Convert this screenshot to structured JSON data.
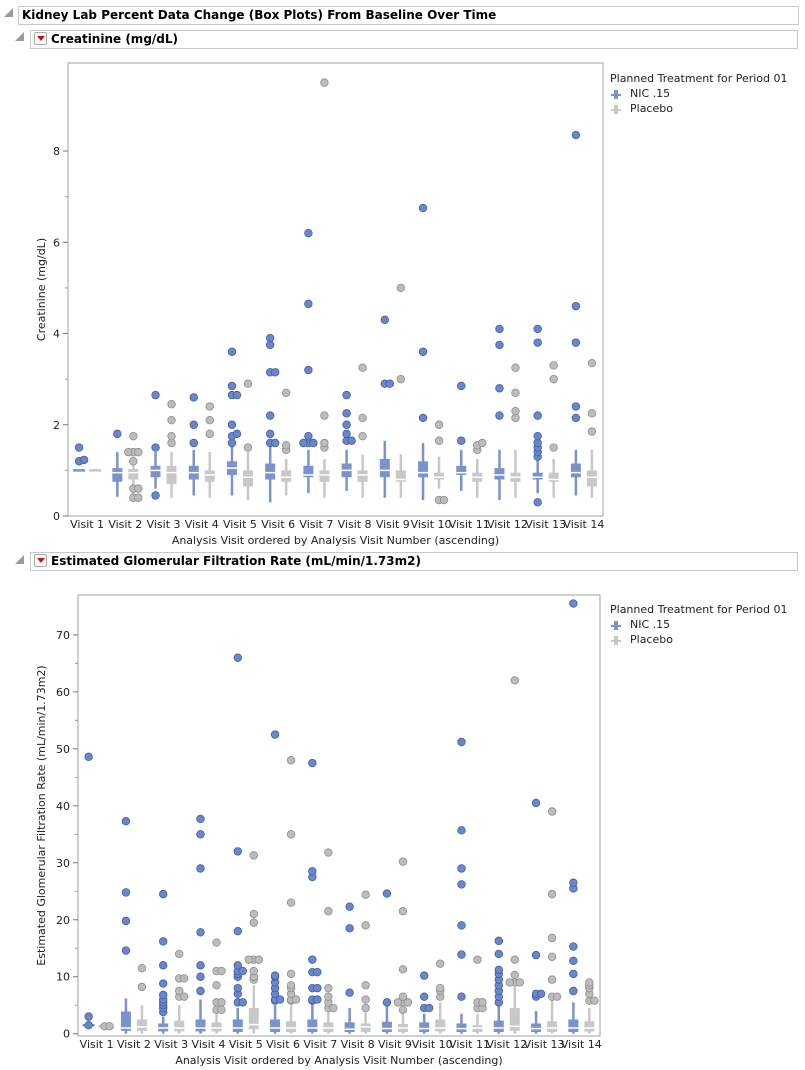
{
  "report": {
    "title": "Kidney Lab Percent Data Change (Box Plots) From Baseline Over Time"
  },
  "legend": {
    "title": "Planned Treatment for Period 01",
    "items": [
      {
        "label": "NIC .15",
        "color": "#7b93cc"
      },
      {
        "label": "Placebo",
        "color": "#c8c8c8"
      }
    ]
  },
  "colors": {
    "nic_box": "#7b93cc",
    "nic_point": "#6b87c9",
    "placebo_box": "#c8c8c8",
    "placebo_point": "#bcbcbc"
  },
  "chart_data": [
    {
      "type": "box",
      "title": "Creatinine (mg/dL)",
      "ylabel": "Creatinine (mg/dL)",
      "xlabel": "Analysis Visit ordered by Analysis Visit Number (ascending)",
      "ylim": [
        0,
        9.93
      ],
      "yticks": [
        0,
        2,
        4,
        6,
        8
      ],
      "grid": false,
      "legend": "right",
      "categories": [
        "Visit 1",
        "Visit 2",
        "Visit 3",
        "Visit 4",
        "Visit 5",
        "Visit 6",
        "Visit 7",
        "Visit 8",
        "Visit 9",
        "Visit 10",
        "Visit 11",
        "Visit 12",
        "Visit 13",
        "Visit 14"
      ],
      "series": [
        {
          "name": "NIC .15",
          "boxes": [
            {
              "min": 1.0,
              "q1": 1.0,
              "median": 1.0,
              "q3": 1.0,
              "max": 1.0,
              "outliers": [
                1.2,
                1.23,
                1.5
              ]
            },
            {
              "min": 0.42,
              "q1": 0.75,
              "median": 0.95,
              "q3": 1.05,
              "max": 1.4,
              "outliers": [
                1.8
              ]
            },
            {
              "min": 0.6,
              "q1": 0.85,
              "median": 1.0,
              "q3": 1.1,
              "max": 1.4,
              "outliers": [
                0.45,
                1.5,
                2.65
              ]
            },
            {
              "min": 0.45,
              "q1": 0.8,
              "median": 0.95,
              "q3": 1.1,
              "max": 1.45,
              "outliers": [
                1.6,
                2.0,
                2.6
              ]
            },
            {
              "min": 0.45,
              "q1": 0.9,
              "median": 1.05,
              "q3": 1.2,
              "max": 1.65,
              "outliers": [
                1.6,
                1.75,
                1.8,
                2.0,
                2.65,
                2.65,
                2.85,
                3.6
              ]
            },
            {
              "min": 0.3,
              "q1": 0.8,
              "median": 0.95,
              "q3": 1.15,
              "max": 1.6,
              "outliers": [
                1.6,
                1.6,
                1.8,
                2.2,
                3.15,
                3.15,
                3.75,
                3.9
              ]
            },
            {
              "min": 0.5,
              "q1": 0.85,
              "median": 0.9,
              "q3": 1.1,
              "max": 1.45,
              "outliers": [
                1.6,
                1.6,
                1.6,
                1.75,
                3.2,
                4.65,
                6.2
              ]
            },
            {
              "min": 0.55,
              "q1": 0.85,
              "median": 1.0,
              "q3": 1.15,
              "max": 1.45,
              "outliers": [
                1.65,
                1.65,
                1.8,
                2.0,
                2.25,
                2.65
              ]
            },
            {
              "min": 0.4,
              "q1": 0.85,
              "median": 1.0,
              "q3": 1.25,
              "max": 1.65,
              "outliers": [
                2.9,
                2.9,
                4.3
              ]
            },
            {
              "min": 0.35,
              "q1": 0.85,
              "median": 0.95,
              "q3": 1.2,
              "max": 1.6,
              "outliers": [
                2.15,
                3.6,
                6.75
              ]
            },
            {
              "min": 0.55,
              "q1": 0.9,
              "median": 0.95,
              "q3": 1.1,
              "max": 1.45,
              "outliers": [
                1.65,
                2.85
              ]
            },
            {
              "min": 0.35,
              "q1": 0.8,
              "median": 0.9,
              "q3": 1.05,
              "max": 1.45,
              "outliers": [
                2.2,
                2.8,
                3.75,
                4.1
              ]
            },
            {
              "min": 0.5,
              "q1": 0.8,
              "median": 0.85,
              "q3": 0.95,
              "max": 1.25,
              "outliers": [
                0.3,
                1.3,
                1.4,
                1.5,
                1.6,
                1.75,
                2.2,
                3.8,
                4.1
              ]
            },
            {
              "min": 0.45,
              "q1": 0.85,
              "median": 0.95,
              "q3": 1.15,
              "max": 1.45,
              "outliers": [
                2.15,
                2.4,
                3.8,
                4.6,
                8.35
              ]
            }
          ]
        },
        {
          "name": "Placebo",
          "boxes": [
            {
              "min": 1.0,
              "q1": 1.0,
              "median": 1.0,
              "q3": 1.0,
              "max": 1.0,
              "outliers": []
            },
            {
              "min": 0.45,
              "q1": 0.8,
              "median": 0.95,
              "q3": 1.03,
              "max": 1.3,
              "outliers": [
                0.4,
                0.4,
                0.6,
                0.6,
                1.2,
                1.4,
                1.4,
                1.4,
                1.75
              ]
            },
            {
              "min": 0.4,
              "q1": 0.7,
              "median": 0.95,
              "q3": 1.1,
              "max": 1.4,
              "outliers": [
                1.6,
                1.75,
                2.1,
                2.45
              ]
            },
            {
              "min": 0.4,
              "q1": 0.75,
              "median": 0.9,
              "q3": 1.0,
              "max": 1.4,
              "outliers": [
                1.8,
                2.1,
                2.4
              ]
            },
            {
              "min": 0.35,
              "q1": 0.65,
              "median": 0.85,
              "q3": 1.0,
              "max": 1.4,
              "outliers": [
                1.5,
                2.9
              ]
            },
            {
              "min": 0.45,
              "q1": 0.75,
              "median": 0.85,
              "q3": 1.0,
              "max": 1.25,
              "outliers": [
                1.45,
                1.55,
                2.7
              ]
            },
            {
              "min": 0.4,
              "q1": 0.75,
              "median": 0.9,
              "q3": 1.0,
              "max": 1.25,
              "outliers": [
                1.5,
                1.6,
                2.2,
                9.5
              ]
            },
            {
              "min": 0.4,
              "q1": 0.75,
              "median": 0.9,
              "q3": 1.0,
              "max": 1.35,
              "outliers": [
                1.75,
                2.15,
                3.25
              ]
            },
            {
              "min": 0.4,
              "q1": 0.75,
              "median": 0.8,
              "q3": 1.0,
              "max": 1.35,
              "outliers": [
                3.0,
                5.0
              ]
            },
            {
              "min": 0.6,
              "q1": 0.8,
              "median": 0.85,
              "q3": 0.95,
              "max": 1.3,
              "outliers": [
                0.35,
                0.35,
                1.65,
                2.0
              ]
            },
            {
              "min": 0.4,
              "q1": 0.75,
              "median": 0.85,
              "q3": 0.95,
              "max": 1.25,
              "outliers": [
                1.45,
                1.55,
                1.6
              ]
            },
            {
              "min": 0.4,
              "q1": 0.75,
              "median": 0.85,
              "q3": 0.95,
              "max": 1.45,
              "outliers": [
                2.15,
                2.3,
                2.7,
                3.25
              ]
            },
            {
              "min": 0.4,
              "q1": 0.75,
              "median": 0.8,
              "q3": 0.95,
              "max": 1.25,
              "outliers": [
                1.5,
                3.0,
                3.3
              ]
            },
            {
              "min": 0.4,
              "q1": 0.65,
              "median": 0.85,
              "q3": 1.0,
              "max": 1.45,
              "outliers": [
                1.85,
                2.25,
                3.35
              ]
            }
          ]
        }
      ]
    },
    {
      "type": "box",
      "title": "Estimated Glomerular Filtration Rate (mL/min/1.73m2)",
      "ylabel": "Estimated Glomerular Filtration Rate (mL/min/1.73m2)",
      "xlabel": "Analysis Visit ordered by Analysis Visit Number (ascending)",
      "ylim": [
        -0.4,
        77
      ],
      "yticks": [
        0,
        10,
        20,
        30,
        40,
        50,
        60,
        70
      ],
      "grid": false,
      "legend": "right",
      "categories": [
        "Visit 1",
        "Visit 2",
        "Visit 3",
        "Visit 4",
        "Visit 5",
        "Visit 6",
        "Visit 7",
        "Visit 8",
        "Visit 9",
        "Visit 10",
        "Visit 11",
        "Visit 12",
        "Visit 13",
        "Visit 14"
      ],
      "series": [
        {
          "name": "NIC .15",
          "boxes": [
            {
              "min": 1.5,
              "q1": 1.5,
              "median": 1.5,
              "q3": 1.5,
              "max": 1.5,
              "outliers": [
                1.5,
                3.0,
                48.6
              ]
            },
            {
              "min": 0,
              "q1": 0.5,
              "median": 1.0,
              "q3": 3.9,
              "max": 6.2,
              "outliers": [
                14.6,
                19.8,
                24.8,
                37.3
              ]
            },
            {
              "min": 0,
              "q1": 0.4,
              "median": 1.0,
              "q3": 1.8,
              "max": 3.0,
              "outliers": [
                3.8,
                4.5,
                5.0,
                5.5,
                6.0,
                6.8,
                8.8,
                12,
                16.2,
                24.5
              ]
            },
            {
              "min": 0,
              "q1": 0.4,
              "median": 1.0,
              "q3": 2.5,
              "max": 6.0,
              "outliers": [
                7.5,
                10,
                12,
                17.8,
                29,
                35,
                37.7
              ]
            },
            {
              "min": 0,
              "q1": 0.3,
              "median": 1.0,
              "q3": 2.5,
              "max": 4.5,
              "outliers": [
                5.5,
                5.5,
                7,
                8,
                10,
                10.5,
                11,
                11,
                12,
                18,
                32,
                66
              ]
            },
            {
              "min": 0,
              "q1": 0.3,
              "median": 1.0,
              "q3": 2.5,
              "max": 5.0,
              "outliers": [
                5.8,
                6,
                6,
                7,
                8,
                9,
                10,
                10.2,
                52.5
              ]
            },
            {
              "min": 0,
              "q1": 0.3,
              "median": 1.0,
              "q3": 2.5,
              "max": 5.5,
              "outliers": [
                5.8,
                6,
                6,
                8,
                8,
                10.8,
                10.8,
                13,
                27.5,
                28.5,
                47.5
              ]
            },
            {
              "min": 0,
              "q1": 0.3,
              "median": 0.8,
              "q3": 2.0,
              "max": 4.5,
              "outliers": [
                7.2,
                18.5,
                22.3
              ]
            },
            {
              "min": 0,
              "q1": 0.3,
              "median": 0.9,
              "q3": 2.1,
              "max": 5.0,
              "outliers": [
                5.5,
                24.6
              ]
            },
            {
              "min": 0,
              "q1": 0.3,
              "median": 0.9,
              "q3": 2.0,
              "max": 3.5,
              "outliers": [
                4.5,
                4.5,
                6.5,
                10.2
              ]
            },
            {
              "min": 0,
              "q1": 0.3,
              "median": 0.9,
              "q3": 1.8,
              "max": 3.5,
              "outliers": [
                6.5,
                13.9,
                19,
                26.2,
                29,
                35.7,
                51.2
              ]
            },
            {
              "min": 0,
              "q1": 0.3,
              "median": 1.0,
              "q3": 2.3,
              "max": 5.0,
              "outliers": [
                5.5,
                6.5,
                7.5,
                8.5,
                9.5,
                10.5,
                11.2,
                14,
                16.3
              ]
            },
            {
              "min": 0,
              "q1": 0.3,
              "median": 0.9,
              "q3": 1.8,
              "max": 4.0,
              "outliers": [
                6.5,
                7,
                7,
                13.8,
                40.5
              ]
            },
            {
              "min": 0,
              "q1": 0.3,
              "median": 1.0,
              "q3": 2.5,
              "max": 5.5,
              "outliers": [
                7.5,
                10.5,
                12.8,
                15.3,
                25.5,
                26.5,
                75.5
              ]
            }
          ]
        },
        {
          "name": "Placebo",
          "boxes": [
            {
              "min": 1.3,
              "q1": 1.3,
              "median": 1.3,
              "q3": 1.3,
              "max": 1.3,
              "outliers": [
                1.3,
                1.3
              ]
            },
            {
              "min": 0,
              "q1": 0.5,
              "median": 1.2,
              "q3": 2.5,
              "max": 5.0,
              "outliers": [
                8.2,
                11.5
              ]
            },
            {
              "min": 0,
              "q1": 0.4,
              "median": 1.0,
              "q3": 2.3,
              "max": 5.0,
              "outliers": [
                6.5,
                6.5,
                7.5,
                9.7,
                9.7,
                14
              ]
            },
            {
              "min": 0,
              "q1": 0.4,
              "median": 1.0,
              "q3": 2.0,
              "max": 5.0,
              "outliers": [
                4.2,
                4.2,
                5.5,
                5.5,
                8.5,
                11,
                11,
                16
              ]
            },
            {
              "min": 0,
              "q1": 0.8,
              "median": 1.6,
              "q3": 4.5,
              "max": 8.5,
              "outliers": [
                9.5,
                10,
                11,
                13,
                13,
                13,
                19.5,
                21,
                31.3
              ]
            },
            {
              "min": 0,
              "q1": 0.3,
              "median": 1.0,
              "q3": 2.2,
              "max": 5.0,
              "outliers": [
                5.8,
                6,
                6,
                7,
                8,
                8.5,
                10.5,
                23,
                35,
                48
              ]
            },
            {
              "min": 0,
              "q1": 0.3,
              "median": 1.0,
              "q3": 2.0,
              "max": 4.5,
              "outliers": [
                4.5,
                4.5,
                5.5,
                6.5,
                8,
                21.5,
                31.8
              ]
            },
            {
              "min": 0,
              "q1": 0.3,
              "median": 1.2,
              "q3": 1.8,
              "max": 3.8,
              "outliers": [
                4.5,
                6,
                8.5,
                19,
                24.4
              ]
            },
            {
              "min": 0,
              "q1": 0.3,
              "median": 1.0,
              "q3": 1.7,
              "max": 3.7,
              "outliers": [
                4.2,
                5.5,
                5.5,
                5.5,
                6.5,
                11.3,
                21.5,
                30.2
              ]
            },
            {
              "min": 0,
              "q1": 0.4,
              "median": 1.0,
              "q3": 2.5,
              "max": 5.5,
              "outliers": [
                6.5,
                7.5,
                8,
                12.3
              ]
            },
            {
              "min": 0,
              "q1": 0.3,
              "median": 1.0,
              "q3": 1.5,
              "max": 3.5,
              "outliers": [
                4.5,
                4.5,
                5.5,
                5.5,
                13
              ]
            },
            {
              "min": 0,
              "q1": 0.5,
              "median": 1.3,
              "q3": 4.5,
              "max": 9.0,
              "outliers": [
                9,
                9,
                9,
                10.3,
                13,
                62
              ]
            },
            {
              "min": 0,
              "q1": 0.3,
              "median": 1.0,
              "q3": 2.2,
              "max": 6.0,
              "outliers": [
                6.5,
                6.5,
                9.5,
                13.5,
                16.8,
                24.5,
                39
              ]
            },
            {
              "min": 0,
              "q1": 0.4,
              "median": 1.0,
              "q3": 2.2,
              "max": 4.5,
              "outliers": [
                5.8,
                5.8,
                7,
                8,
                8.5,
                9
              ]
            }
          ]
        }
      ]
    }
  ]
}
